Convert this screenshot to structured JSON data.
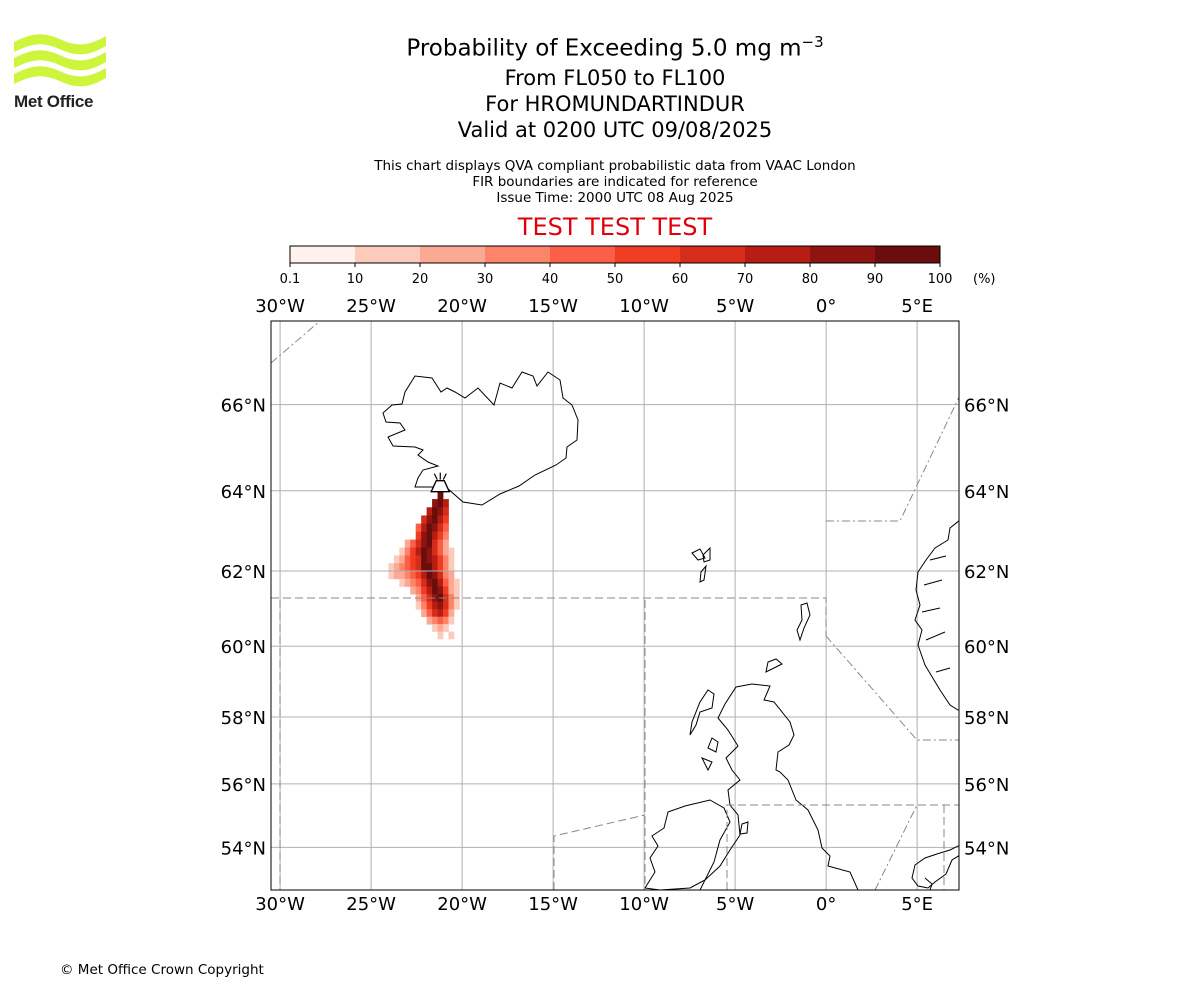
{
  "logo": {
    "name": "Met Office",
    "icon": "met-office-wave-logo",
    "color": "#ccf53c"
  },
  "title": {
    "line1_prefix": "Probability of Exceeding 5.0 mg m",
    "line1_exponent": "−3",
    "line2": "From FL050 to FL100",
    "line3": "For HROMUNDARTINDUR",
    "line4": "Valid at 0200 UTC 09/08/2025"
  },
  "subtitle": {
    "line1": "This chart displays QVA compliant probabilistic data from VAAC London",
    "line2": "FIR boundaries are indicated for reference",
    "line3": "Issue Time: 2000 UTC 08 Aug 2025"
  },
  "test_banner": "TEST TEST TEST",
  "colorbar": {
    "ticks": [
      "0.1",
      "10",
      "20",
      "30",
      "40",
      "50",
      "60",
      "70",
      "80",
      "90",
      "100"
    ],
    "unit": "(%)",
    "colors": [
      "#fff1ec",
      "#fdcbbb",
      "#fca994",
      "#fc8468",
      "#fb5f47",
      "#f13c24",
      "#d62c1a",
      "#b81d13",
      "#8f1410",
      "#6b0d0d"
    ]
  },
  "map": {
    "lon_range": [
      -30.5,
      7.3
    ],
    "lat_range": [
      52.6,
      67.8
    ],
    "lon_labels": [
      {
        "lon": -30,
        "text": "30°W"
      },
      {
        "lon": -25,
        "text": "25°W"
      },
      {
        "lon": -20,
        "text": "20°W"
      },
      {
        "lon": -15,
        "text": "15°W"
      },
      {
        "lon": -10,
        "text": "10°W"
      },
      {
        "lon": -5,
        "text": "5°W"
      },
      {
        "lon": 0,
        "text": "0°"
      },
      {
        "lon": 5,
        "text": "5°E"
      }
    ],
    "lat_labels": [
      {
        "lat": 66,
        "text": "66°N"
      },
      {
        "lat": 64,
        "text": "64°N"
      },
      {
        "lat": 62,
        "text": "62°N"
      },
      {
        "lat": 60,
        "text": "60°N"
      },
      {
        "lat": 58,
        "text": "58°N"
      },
      {
        "lat": 56,
        "text": "56°N"
      },
      {
        "lat": 54,
        "text": "54°N"
      }
    ],
    "volcano": {
      "name": "HROMUNDARTINDUR",
      "icon": "volcano-icon",
      "lon": -21.2,
      "lat": 64.1
    },
    "plume_cells": [
      {
        "lon": -21.2,
        "lat": 63.9,
        "level": 9
      },
      {
        "lon": -21.5,
        "lat": 63.7,
        "level": 8
      },
      {
        "lon": -21.2,
        "lat": 63.7,
        "level": 9
      },
      {
        "lon": -20.9,
        "lat": 63.7,
        "level": 7
      },
      {
        "lon": -21.8,
        "lat": 63.5,
        "level": 7
      },
      {
        "lon": -21.5,
        "lat": 63.5,
        "level": 9
      },
      {
        "lon": -21.2,
        "lat": 63.5,
        "level": 8
      },
      {
        "lon": -20.9,
        "lat": 63.5,
        "level": 6
      },
      {
        "lon": -22.1,
        "lat": 63.3,
        "level": 6
      },
      {
        "lon": -21.8,
        "lat": 63.3,
        "level": 8
      },
      {
        "lon": -21.5,
        "lat": 63.3,
        "level": 9
      },
      {
        "lon": -21.2,
        "lat": 63.3,
        "level": 7
      },
      {
        "lon": -20.9,
        "lat": 63.3,
        "level": 5
      },
      {
        "lon": -22.4,
        "lat": 63.1,
        "level": 4
      },
      {
        "lon": -22.1,
        "lat": 63.1,
        "level": 7
      },
      {
        "lon": -21.8,
        "lat": 63.1,
        "level": 9
      },
      {
        "lon": -21.5,
        "lat": 63.1,
        "level": 8
      },
      {
        "lon": -21.2,
        "lat": 63.1,
        "level": 6
      },
      {
        "lon": -20.9,
        "lat": 63.1,
        "level": 4
      },
      {
        "lon": -22.4,
        "lat": 62.9,
        "level": 5
      },
      {
        "lon": -22.1,
        "lat": 62.9,
        "level": 8
      },
      {
        "lon": -21.8,
        "lat": 62.9,
        "level": 9
      },
      {
        "lon": -21.5,
        "lat": 62.9,
        "level": 7
      },
      {
        "lon": -21.2,
        "lat": 62.9,
        "level": 5
      },
      {
        "lon": -20.9,
        "lat": 62.9,
        "level": 3
      },
      {
        "lon": -23.0,
        "lat": 62.7,
        "level": 2
      },
      {
        "lon": -22.7,
        "lat": 62.7,
        "level": 4
      },
      {
        "lon": -22.4,
        "lat": 62.7,
        "level": 6
      },
      {
        "lon": -22.1,
        "lat": 62.7,
        "level": 8
      },
      {
        "lon": -21.8,
        "lat": 62.7,
        "level": 9
      },
      {
        "lon": -21.5,
        "lat": 62.7,
        "level": 6
      },
      {
        "lon": -21.2,
        "lat": 62.7,
        "level": 4
      },
      {
        "lon": -20.9,
        "lat": 62.7,
        "level": 2
      },
      {
        "lon": -23.3,
        "lat": 62.5,
        "level": 1
      },
      {
        "lon": -23.0,
        "lat": 62.5,
        "level": 3
      },
      {
        "lon": -22.7,
        "lat": 62.5,
        "level": 5
      },
      {
        "lon": -22.4,
        "lat": 62.5,
        "level": 7
      },
      {
        "lon": -22.1,
        "lat": 62.5,
        "level": 9
      },
      {
        "lon": -21.8,
        "lat": 62.5,
        "level": 8
      },
      {
        "lon": -21.5,
        "lat": 62.5,
        "level": 6
      },
      {
        "lon": -21.2,
        "lat": 62.5,
        "level": 4
      },
      {
        "lon": -20.9,
        "lat": 62.5,
        "level": 2
      },
      {
        "lon": -20.6,
        "lat": 62.5,
        "level": 1
      },
      {
        "lon": -23.6,
        "lat": 62.3,
        "level": 1
      },
      {
        "lon": -23.3,
        "lat": 62.3,
        "level": 2
      },
      {
        "lon": -23.0,
        "lat": 62.3,
        "level": 4
      },
      {
        "lon": -22.7,
        "lat": 62.3,
        "level": 5
      },
      {
        "lon": -22.4,
        "lat": 62.3,
        "level": 6
      },
      {
        "lon": -22.1,
        "lat": 62.3,
        "level": 9
      },
      {
        "lon": -21.8,
        "lat": 62.3,
        "level": 8
      },
      {
        "lon": -21.5,
        "lat": 62.3,
        "level": 7
      },
      {
        "lon": -21.2,
        "lat": 62.3,
        "level": 5
      },
      {
        "lon": -20.9,
        "lat": 62.3,
        "level": 3
      },
      {
        "lon": -20.6,
        "lat": 62.3,
        "level": 1
      },
      {
        "lon": -23.9,
        "lat": 62.1,
        "level": 1
      },
      {
        "lon": -23.6,
        "lat": 62.1,
        "level": 2
      },
      {
        "lon": -23.3,
        "lat": 62.1,
        "level": 3
      },
      {
        "lon": -23.0,
        "lat": 62.1,
        "level": 4
      },
      {
        "lon": -22.7,
        "lat": 62.1,
        "level": 5
      },
      {
        "lon": -22.4,
        "lat": 62.1,
        "level": 6
      },
      {
        "lon": -22.1,
        "lat": 62.1,
        "level": 9
      },
      {
        "lon": -21.8,
        "lat": 62.1,
        "level": 9
      },
      {
        "lon": -21.5,
        "lat": 62.1,
        "level": 7
      },
      {
        "lon": -21.2,
        "lat": 62.1,
        "level": 5
      },
      {
        "lon": -20.9,
        "lat": 62.1,
        "level": 3
      },
      {
        "lon": -20.6,
        "lat": 62.1,
        "level": 1
      },
      {
        "lon": -23.9,
        "lat": 61.9,
        "level": 1
      },
      {
        "lon": -23.6,
        "lat": 61.9,
        "level": 2
      },
      {
        "lon": -23.3,
        "lat": 61.9,
        "level": 2
      },
      {
        "lon": -23.0,
        "lat": 61.9,
        "level": 3
      },
      {
        "lon": -22.7,
        "lat": 61.9,
        "level": 4
      },
      {
        "lon": -22.4,
        "lat": 61.9,
        "level": 5
      },
      {
        "lon": -22.1,
        "lat": 61.9,
        "level": 7
      },
      {
        "lon": -21.8,
        "lat": 61.9,
        "level": 9
      },
      {
        "lon": -21.5,
        "lat": 61.9,
        "level": 8
      },
      {
        "lon": -21.2,
        "lat": 61.9,
        "level": 6
      },
      {
        "lon": -20.9,
        "lat": 61.9,
        "level": 3
      },
      {
        "lon": -20.6,
        "lat": 61.9,
        "level": 2
      },
      {
        "lon": -23.3,
        "lat": 61.7,
        "level": 1
      },
      {
        "lon": -23.0,
        "lat": 61.7,
        "level": 2
      },
      {
        "lon": -22.7,
        "lat": 61.7,
        "level": 3
      },
      {
        "lon": -22.4,
        "lat": 61.7,
        "level": 4
      },
      {
        "lon": -22.1,
        "lat": 61.7,
        "level": 6
      },
      {
        "lon": -21.8,
        "lat": 61.7,
        "level": 8
      },
      {
        "lon": -21.5,
        "lat": 61.7,
        "level": 9
      },
      {
        "lon": -21.2,
        "lat": 61.7,
        "level": 7
      },
      {
        "lon": -20.9,
        "lat": 61.7,
        "level": 4
      },
      {
        "lon": -20.6,
        "lat": 61.7,
        "level": 2
      },
      {
        "lon": -20.3,
        "lat": 61.7,
        "level": 1
      },
      {
        "lon": -22.7,
        "lat": 61.5,
        "level": 2
      },
      {
        "lon": -22.4,
        "lat": 61.5,
        "level": 3
      },
      {
        "lon": -22.1,
        "lat": 61.5,
        "level": 5
      },
      {
        "lon": -21.8,
        "lat": 61.5,
        "level": 7
      },
      {
        "lon": -21.5,
        "lat": 61.5,
        "level": 9
      },
      {
        "lon": -21.2,
        "lat": 61.5,
        "level": 8
      },
      {
        "lon": -20.9,
        "lat": 61.5,
        "level": 5
      },
      {
        "lon": -20.6,
        "lat": 61.5,
        "level": 2
      },
      {
        "lon": -20.3,
        "lat": 61.5,
        "level": 1
      },
      {
        "lon": -22.4,
        "lat": 61.3,
        "level": 2
      },
      {
        "lon": -22.1,
        "lat": 61.3,
        "level": 4
      },
      {
        "lon": -21.8,
        "lat": 61.3,
        "level": 6
      },
      {
        "lon": -21.5,
        "lat": 61.3,
        "level": 8
      },
      {
        "lon": -21.2,
        "lat": 61.3,
        "level": 9
      },
      {
        "lon": -20.9,
        "lat": 61.3,
        "level": 6
      },
      {
        "lon": -20.6,
        "lat": 61.3,
        "level": 3
      },
      {
        "lon": -20.3,
        "lat": 61.3,
        "level": 1
      },
      {
        "lon": -22.4,
        "lat": 61.1,
        "level": 1
      },
      {
        "lon": -22.1,
        "lat": 61.1,
        "level": 3
      },
      {
        "lon": -21.8,
        "lat": 61.1,
        "level": 5
      },
      {
        "lon": -21.5,
        "lat": 61.1,
        "level": 7
      },
      {
        "lon": -21.2,
        "lat": 61.1,
        "level": 8
      },
      {
        "lon": -20.9,
        "lat": 61.1,
        "level": 6
      },
      {
        "lon": -20.6,
        "lat": 61.1,
        "level": 3
      },
      {
        "lon": -20.3,
        "lat": 61.1,
        "level": 1
      },
      {
        "lon": -22.1,
        "lat": 60.9,
        "level": 2
      },
      {
        "lon": -21.8,
        "lat": 60.9,
        "level": 4
      },
      {
        "lon": -21.5,
        "lat": 60.9,
        "level": 6
      },
      {
        "lon": -21.2,
        "lat": 60.9,
        "level": 7
      },
      {
        "lon": -20.9,
        "lat": 60.9,
        "level": 5
      },
      {
        "lon": -20.6,
        "lat": 60.9,
        "level": 2
      },
      {
        "lon": -21.8,
        "lat": 60.7,
        "level": 2
      },
      {
        "lon": -21.5,
        "lat": 60.7,
        "level": 3
      },
      {
        "lon": -21.2,
        "lat": 60.7,
        "level": 4
      },
      {
        "lon": -20.9,
        "lat": 60.7,
        "level": 3
      },
      {
        "lon": -20.6,
        "lat": 60.7,
        "level": 1
      },
      {
        "lon": -21.5,
        "lat": 60.5,
        "level": 1
      },
      {
        "lon": -21.2,
        "lat": 60.5,
        "level": 2
      },
      {
        "lon": -20.9,
        "lat": 60.5,
        "level": 1
      },
      {
        "lon": -21.2,
        "lat": 60.3,
        "level": 1
      },
      {
        "lon": -20.6,
        "lat": 60.3,
        "level": 1
      }
    ]
  },
  "copyright": "© Met Office Crown Copyright"
}
